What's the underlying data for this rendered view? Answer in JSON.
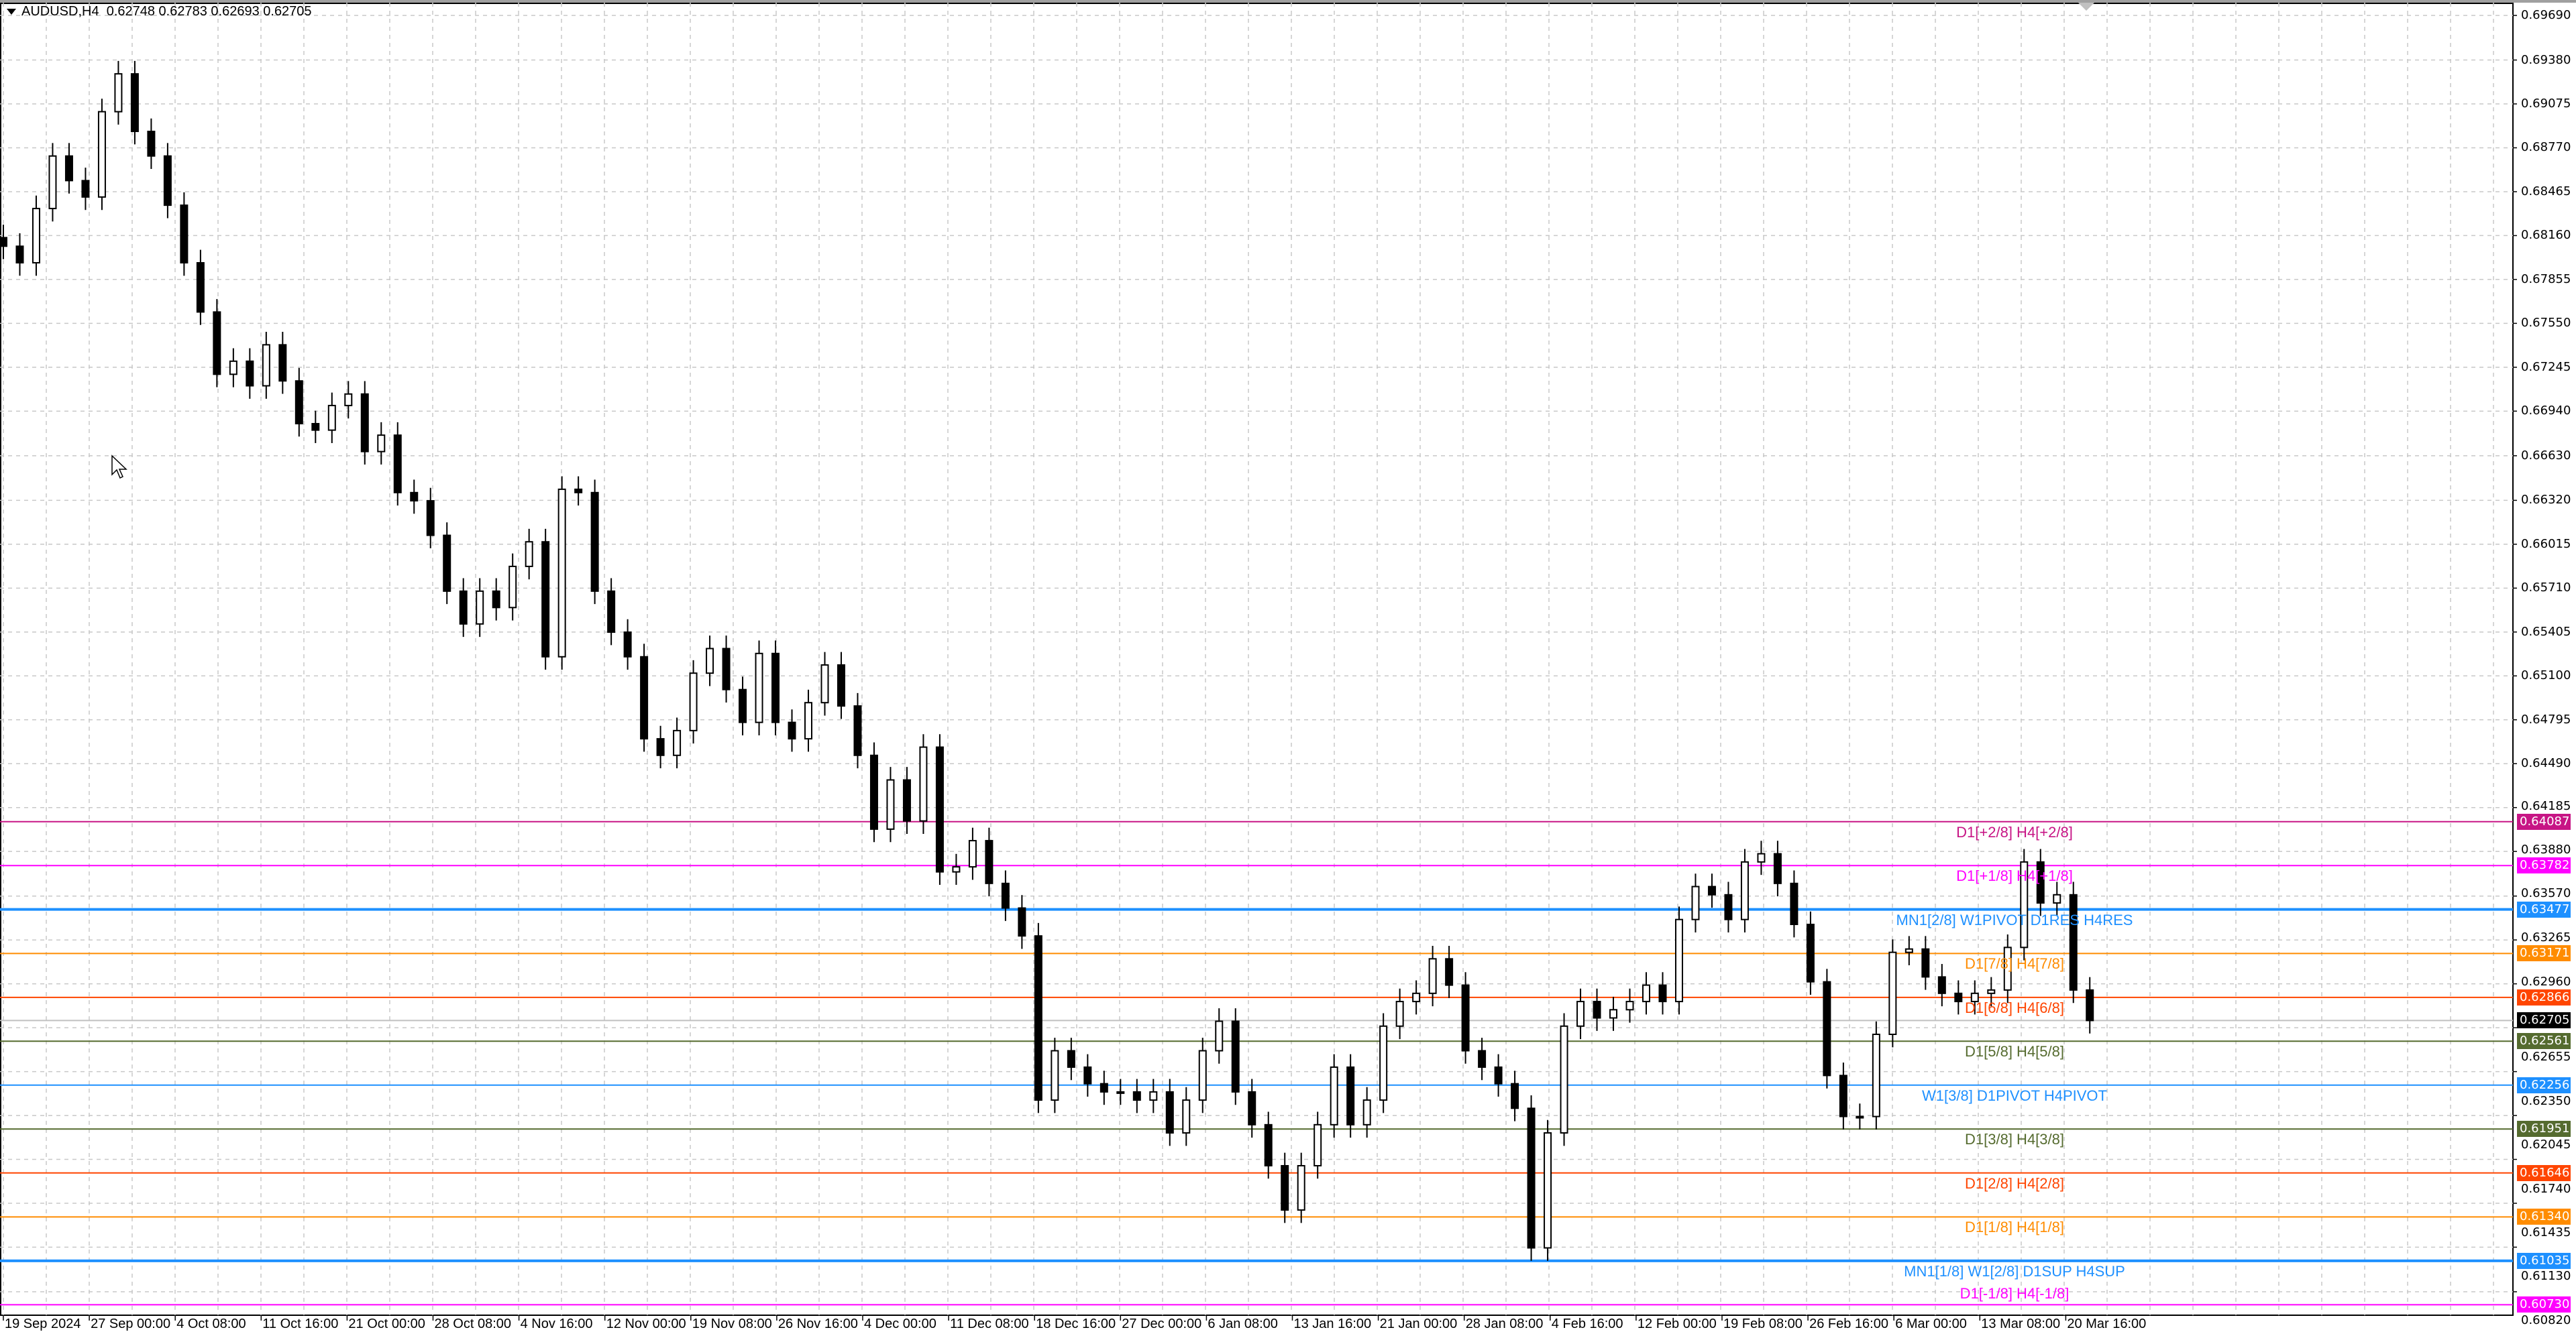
{
  "header": {
    "symbol": "AUDUSD,H4",
    "ohlc": "0.62748 0.62783 0.62693 0.62705"
  },
  "chart_data": {
    "type": "candlestick",
    "title": "AUDUSD,H4",
    "ylim": [
      0.6073,
      0.6969
    ],
    "y_ticks": [
      "0.69690",
      "0.69380",
      "0.69075",
      "0.68770",
      "0.68465",
      "0.68160",
      "0.67855",
      "0.67550",
      "0.67245",
      "0.66940",
      "0.66630",
      "0.66320",
      "0.66015",
      "0.65710",
      "0.65405",
      "0.65100",
      "0.64795",
      "0.64490",
      "0.64185",
      "0.63880",
      "0.63570",
      "0.63265",
      "0.62960",
      "0.62655",
      "0.62350",
      "0.62045",
      "0.61740",
      "0.61435",
      "0.61130",
      "0.60820"
    ],
    "x_ticks": [
      "19 Sep 2024",
      "27 Sep 00:00",
      "4 Oct 08:00",
      "11 Oct 16:00",
      "21 Oct 00:00",
      "28 Oct 08:00",
      "4 Nov 16:00",
      "12 Nov 00:00",
      "19 Nov 08:00",
      "26 Nov 16:00",
      "4 Dec 00:00",
      "11 Dec 08:00",
      "18 Dec 16:00",
      "27 Dec 00:00",
      "6 Jan 08:00",
      "13 Jan 16:00",
      "21 Jan 00:00",
      "28 Jan 08:00",
      "4 Feb 16:00",
      "12 Feb 00:00",
      "19 Feb 08:00",
      "26 Feb 16:00",
      "6 Mar 00:00",
      "13 Mar 08:00",
      "20 Mar 16:00"
    ],
    "grid": true,
    "closes": [
      0.68086,
      0.67971,
      0.68348,
      0.68713,
      0.68542,
      0.68428,
      0.69021,
      0.69284,
      0.68884,
      0.68713,
      0.68371,
      0.67971,
      0.67629,
      0.67196,
      0.67287,
      0.67116,
      0.67401,
      0.6715,
      0.66853,
      0.66808,
      0.66979,
      0.67059,
      0.66659,
      0.66773,
      0.66374,
      0.66317,
      0.66077,
      0.65689,
      0.65461,
      0.65689,
      0.65575,
      0.65861,
      0.66032,
      0.65233,
      0.66397,
      0.66374,
      0.65689,
      0.65404,
      0.65233,
      0.64663,
      0.64548,
      0.6472,
      0.65119,
      0.6529,
      0.65005,
      0.64777,
      0.65256,
      0.64777,
      0.64663,
      0.64914,
      0.65176,
      0.64891,
      0.64548,
      0.64035,
      0.64377,
      0.64092,
      0.64605,
      0.63738,
      0.63773,
      0.63955,
      0.63658,
      0.63487,
      0.63293,
      0.62152,
      0.62495,
      0.62381,
      0.62266,
      0.62209,
      0.62209,
      0.62152,
      0.62209,
      0.61924,
      0.62152,
      0.62495,
      0.627,
      0.62209,
      0.61981,
      0.61696,
      0.61388,
      0.61696,
      0.61981,
      0.62381,
      0.61981,
      0.62152,
      0.62666,
      0.62837,
      0.62894,
      0.63134,
      0.62951,
      0.62495,
      0.62381,
      0.62266,
      0.62095,
      0.61125,
      0.61924,
      0.62666,
      0.62837,
      0.62723,
      0.6278,
      0.62837,
      0.62951,
      0.62837,
      0.63407,
      0.63636,
      0.63579,
      0.63407,
      0.63807,
      0.63864,
      0.63658,
      0.63373,
      0.62974,
      0.62323,
      0.62038,
      0.62038,
      0.62609,
      0.63179,
      0.63202,
      0.63008,
      0.62894,
      0.62837,
      0.62894,
      0.62917,
      0.63213,
      0.63807,
      0.63522,
      0.63579,
      0.62917,
      0.62705
    ],
    "current_price": {
      "value": "0.62705",
      "color": "#000000"
    },
    "levels": [
      {
        "price": "0.64087",
        "label": "D1[+2/8] H4[+2/8]",
        "color": "#C71585",
        "thick": false
      },
      {
        "price": "0.63782",
        "label": "D1[+1/8] H4[+1/8]",
        "color": "#FF00FF",
        "thick": false
      },
      {
        "price": "0.63477",
        "label": "MN1[2/8] W1PIVOT D1RES H4RES",
        "color": "#1E90FF",
        "thick": true
      },
      {
        "price": "0.63171",
        "label": "D1[7/8] H4[7/8]",
        "color": "#FF8C00",
        "thick": false
      },
      {
        "price": "0.62866",
        "label": "D1[6/8] H4[6/8]",
        "color": "#FF4500",
        "thick": false
      },
      {
        "price": "0.62561",
        "label": "D1[5/8] H4[5/8]",
        "color": "#556B2F",
        "thick": false
      },
      {
        "price": "0.62256",
        "label": "W1[3/8] D1PIVOT H4PIVOT",
        "color": "#1E90FF",
        "thick": false
      },
      {
        "price": "0.61951",
        "label": "D1[3/8] H4[3/8]",
        "color": "#556B2F",
        "thick": false
      },
      {
        "price": "0.61646",
        "label": "D1[2/8] H4[2/8]",
        "color": "#FF4500",
        "thick": false
      },
      {
        "price": "0.61340",
        "label": "D1[1/8] H4[1/8]",
        "color": "#FF8C00",
        "thick": false
      },
      {
        "price": "0.61035",
        "label": "MN1[1/8] W1[2/8] D1SUP H4SUP",
        "color": "#1E90FF",
        "thick": true
      },
      {
        "price": "0.60730",
        "label": "D1[-1/8] H4[-1/8]",
        "color": "#FF00FF",
        "thick": false
      }
    ]
  }
}
